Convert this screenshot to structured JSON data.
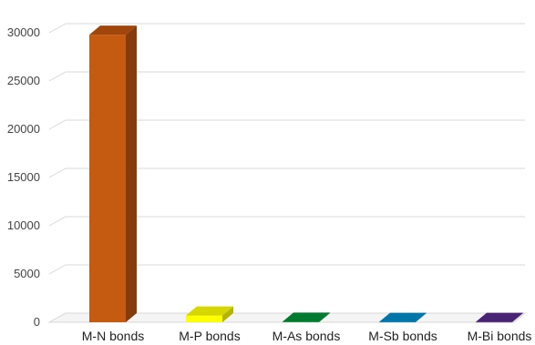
{
  "chart_data": {
    "type": "bar",
    "style": "3d-columns",
    "categories": [
      "M-N bonds",
      "M-P bonds",
      "M-As bonds",
      "M-Sb bonds",
      "M-Bi bonds"
    ],
    "values": [
      29800,
      700,
      60,
      40,
      30
    ],
    "colors": [
      "#C55A11",
      "#FFFF00",
      "#00963C",
      "#0091CF",
      "#5B2D8E"
    ],
    "side_colors": [
      "#843C0C",
      "#B5B500",
      "#006428",
      "#006890",
      "#3C1D5E"
    ],
    "top_colors": [
      "#A0460D",
      "#D6D600",
      "#007A30",
      "#0076A8",
      "#4A2474"
    ],
    "ylim": [
      0,
      30000
    ],
    "yticks": [
      0,
      5000,
      10000,
      15000,
      20000,
      25000,
      30000
    ],
    "title": "",
    "xlabel": "",
    "ylabel": "",
    "grid": true,
    "legend": "none"
  }
}
